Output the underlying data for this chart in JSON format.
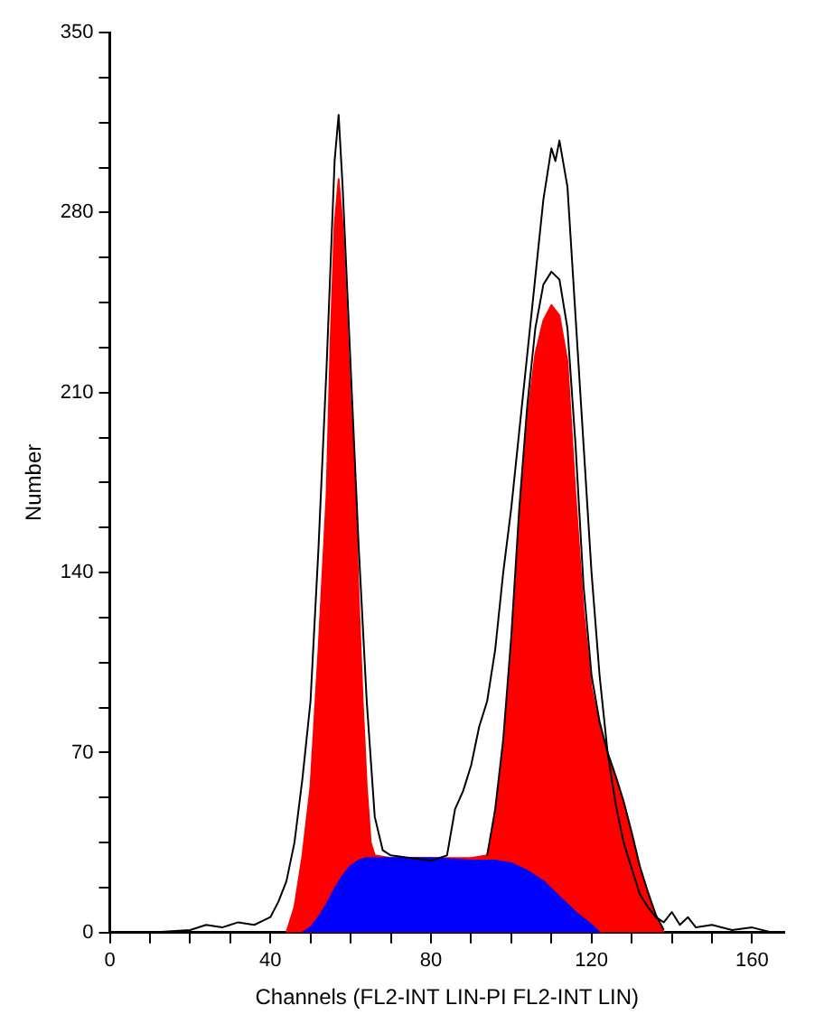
{
  "chart_data": {
    "type": "area",
    "xlabel": "Channels (FL2-INT LIN-PI FL2-INT LIN)",
    "ylabel": "Number",
    "xlim": [
      0,
      168
    ],
    "ylim": [
      0,
      350
    ],
    "xticks": [
      0,
      {
        "value": 10,
        "label": null
      },
      {
        "value": 20,
        "label": null
      },
      {
        "value": 30,
        "label": null
      },
      40,
      {
        "value": 50,
        "label": null
      },
      {
        "value": 60,
        "label": null
      },
      {
        "value": 70,
        "label": null
      },
      80,
      {
        "value": 90,
        "label": null
      },
      {
        "value": 100,
        "label": null
      },
      {
        "value": 110,
        "label": null
      },
      120,
      {
        "value": 130,
        "label": null
      },
      {
        "value": 140,
        "label": null
      },
      {
        "value": 150,
        "label": null
      },
      160
    ],
    "yticks": [
      0,
      {
        "value": 17.5,
        "label": null
      },
      {
        "value": 35,
        "label": null
      },
      {
        "value": 52.5,
        "label": null
      },
      70,
      {
        "value": 87.5,
        "label": null
      },
      {
        "value": 105,
        "label": null
      },
      {
        "value": 122.5,
        "label": null
      },
      140,
      {
        "value": 157.5,
        "label": null
      },
      {
        "value": 175,
        "label": null
      },
      {
        "value": 192.5,
        "label": null
      },
      210,
      {
        "value": 227.5,
        "label": null
      },
      {
        "value": 245,
        "label": null
      },
      {
        "value": 262.5,
        "label": null
      },
      280,
      {
        "value": 297.5,
        "label": null
      },
      {
        "value": 315,
        "label": null
      },
      {
        "value": 332.5,
        "label": null
      },
      350
    ],
    "grid": false,
    "legend": false,
    "series": [
      {
        "color": "#ff0000",
        "x": [
          44,
          46,
          48,
          50,
          52,
          54,
          55,
          56,
          57,
          58,
          59,
          60,
          61,
          62,
          63,
          64,
          65,
          66,
          70,
          80,
          90,
          94,
          96,
          98,
          100,
          102,
          104,
          106,
          108,
          110,
          112,
          114,
          116,
          118,
          120,
          122,
          124,
          126,
          128,
          130,
          132,
          134,
          136,
          138
        ],
        "values": [
          0,
          10,
          30,
          57,
          110,
          170,
          230,
          275,
          293,
          275,
          240,
          205,
          180,
          130,
          90,
          57,
          35,
          30,
          29,
          29,
          29,
          30,
          45,
          70,
          110,
          160,
          200,
          225,
          238,
          244,
          240,
          222,
          170,
          125,
          95,
          80,
          68,
          60,
          50,
          38,
          25,
          15,
          6,
          0
        ]
      },
      {
        "color": "#0000ff",
        "x": [
          48,
          50,
          52,
          54,
          56,
          58,
          60,
          62,
          64,
          70,
          80,
          90,
          96,
          100,
          104,
          108,
          112,
          116,
          120,
          122
        ],
        "values": [
          0,
          2,
          6,
          11,
          17,
          22,
          26,
          28,
          29,
          29,
          29,
          28,
          28,
          27,
          24,
          20,
          14,
          8,
          3,
          0
        ]
      },
      {
        "type": "line",
        "color": "#000000",
        "x": [
          94,
          96,
          98,
          100,
          102,
          104,
          106,
          108,
          110,
          112,
          114,
          116,
          118,
          120,
          122,
          124,
          126,
          128,
          130,
          132,
          134,
          136,
          138
        ],
        "values": [
          30,
          48,
          75,
          115,
          165,
          205,
          235,
          252,
          257,
          254,
          235,
          190,
          135,
          100,
          82,
          70,
          61,
          51,
          39,
          26,
          16,
          7,
          1
        ]
      },
      {
        "type": "line",
        "color": "#000000",
        "x": [
          10,
          20,
          24,
          28,
          32,
          36,
          40,
          42,
          44,
          46,
          48,
          50,
          52,
          54,
          56,
          57,
          58,
          60,
          62,
          64,
          66,
          68,
          70,
          75,
          80,
          84,
          86,
          88,
          90,
          92,
          94,
          96,
          98,
          100,
          102,
          104,
          106,
          108,
          110,
          111,
          112,
          114,
          116,
          118,
          120,
          122,
          124,
          126,
          128,
          130,
          132,
          134,
          136,
          138,
          140,
          142,
          144,
          146,
          150,
          155,
          160,
          165
        ],
        "values": [
          0,
          1,
          3,
          2,
          4,
          3,
          6,
          12,
          20,
          35,
          60,
          90,
          150,
          220,
          300,
          318,
          290,
          220,
          150,
          90,
          45,
          32,
          30,
          29,
          28,
          30,
          48,
          55,
          65,
          80,
          90,
          110,
          140,
          165,
          195,
          225,
          255,
          285,
          305,
          300,
          308,
          290,
          240,
          190,
          140,
          100,
          70,
          50,
          35,
          25,
          15,
          10,
          6,
          4,
          8,
          3,
          6,
          2,
          3,
          1,
          2,
          0
        ]
      }
    ]
  }
}
